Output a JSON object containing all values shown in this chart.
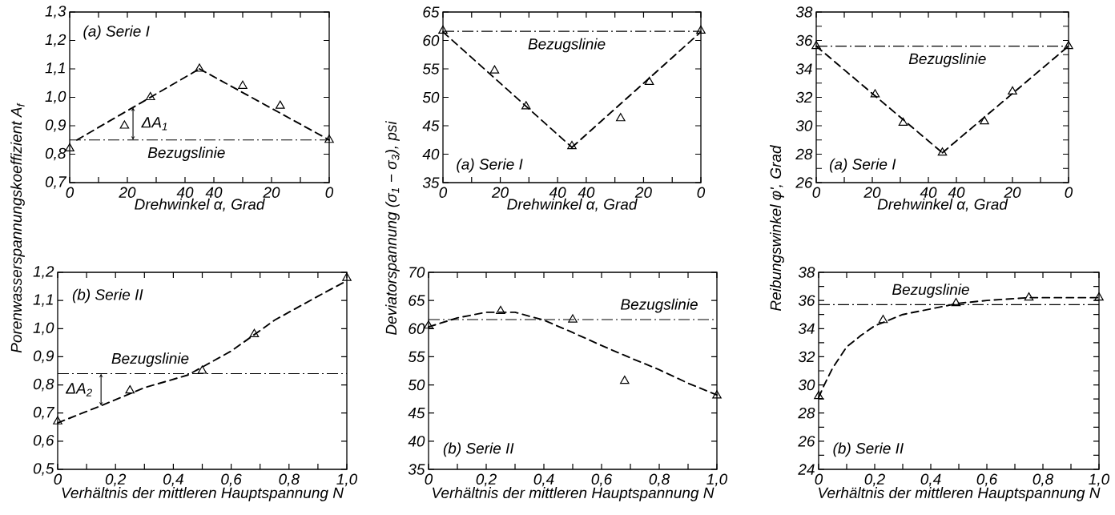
{
  "chart_data": [
    {
      "type": "scatter",
      "title": "(a) Serie I",
      "xlabel": "Drehwinkel α, Grad",
      "ylabel": "Porenwasserspannungskoeffizient A$_{f}$",
      "xlim": [
        0,
        90
      ],
      "ylim": [
        0.7,
        1.3
      ],
      "x2lim": [
        90,
        0
      ],
      "xticks": [
        0,
        {
          "value": 10,
          "label": null
        },
        20,
        {
          "value": 30,
          "label": null
        },
        40,
        {
          "value": 60,
          "label": null
        },
        {
          "value": 80,
          "label": null
        }
      ],
      "x2ticks": [
        40,
        20,
        0
      ],
      "yticks": [
        {
          "value": 0.7,
          "label": "0,7"
        },
        {
          "value": 0.8,
          "label": "0,8"
        },
        {
          "value": 0.9,
          "label": "0,9"
        },
        {
          "value": 1.0,
          "label": "1,0"
        },
        {
          "value": 1.1,
          "label": "1,1"
        },
        {
          "value": 1.2,
          "label": "1,2"
        },
        {
          "value": 1.3,
          "label": "1,3"
        }
      ],
      "series": [
        {
          "color": "#000000",
          "marker": "triangle",
          "x": [
            0,
            19,
            28,
            45
          ],
          "values": [
            0.82,
            0.9,
            1.0,
            1.1
          ]
        },
        {
          "color": "#000000",
          "marker": "triangle",
          "axis": "x2",
          "x": [
            30,
            17,
            0
          ],
          "values": [
            1.04,
            0.97,
            0.85
          ]
        },
        {
          "type": "line",
          "color": "#000000",
          "marker": "none",
          "line_style": "dashed",
          "x": [
            2.5,
            45
          ],
          "values": [
            0.85,
            1.1
          ]
        },
        {
          "type": "line",
          "color": "#000000",
          "marker": "none",
          "line_style": "dashed",
          "axis": "x2",
          "x": [
            45,
            0
          ],
          "values": [
            1.1,
            0.85
          ]
        }
      ],
      "ref_lines": [
        {
          "axis": "y",
          "value": 0.85,
          "label": "Bezugslinie",
          "color": "#000000",
          "line_style": "dashdot"
        }
      ],
      "annotations": [
        "ΔA$_{1}$"
      ]
    },
    {
      "type": "scatter",
      "title": "(a) Serie I",
      "xlabel": "Drehwinkel α, Grad",
      "ylabel": "Deviatorspannung (σ$_{1}$ − σ$_{3}$), psi",
      "xlim": [
        0,
        90
      ],
      "ylim": [
        35,
        65
      ],
      "x2lim": [
        90,
        0
      ],
      "xticks": [
        0,
        {
          "value": 10,
          "label": null
        },
        20,
        {
          "value": 30,
          "label": null
        },
        40,
        {
          "value": 60,
          "label": null
        },
        {
          "value": 80,
          "label": null
        }
      ],
      "x2ticks": [
        40,
        20,
        0
      ],
      "yticks": [
        35,
        40,
        45,
        50,
        55,
        60,
        65
      ],
      "series": [
        {
          "color": "#000000",
          "marker": "triangle",
          "x": [
            0,
            18,
            29,
            45
          ],
          "values": [
            61.7,
            54.7,
            48.4,
            41.4
          ]
        },
        {
          "color": "#000000",
          "marker": "triangle",
          "axis": "x2",
          "x": [
            28,
            18,
            0
          ],
          "values": [
            46.3,
            52.7,
            61.7
          ]
        },
        {
          "type": "line",
          "color": "#000000",
          "marker": "none",
          "line_style": "dashed",
          "x": [
            0,
            45
          ],
          "values": [
            61.5,
            41.2
          ]
        },
        {
          "type": "line",
          "color": "#000000",
          "marker": "none",
          "line_style": "dashed",
          "axis": "x2",
          "x": [
            45,
            0
          ],
          "values": [
            41.2,
            61.5
          ]
        }
      ],
      "ref_lines": [
        {
          "axis": "y",
          "value": 61.6,
          "label": "Bezugslinie",
          "color": "#000000",
          "line_style": "dashdot"
        }
      ]
    },
    {
      "type": "scatter",
      "title": "(a) Serie I",
      "xlabel": "Drehwinkel α, Grad",
      "ylabel": "Reibungswinkel φ', Grad",
      "xlim": [
        0,
        90
      ],
      "ylim": [
        26,
        38
      ],
      "x2lim": [
        90,
        0
      ],
      "xticks": [
        0,
        {
          "value": 10,
          "label": null
        },
        20,
        {
          "value": 30,
          "label": null
        },
        40,
        {
          "value": 60,
          "label": null
        },
        {
          "value": 80,
          "label": null
        }
      ],
      "x2ticks": [
        40,
        20,
        0
      ],
      "yticks": [
        26,
        {
          "value": 27,
          "label": null
        },
        28,
        {
          "value": 29,
          "label": null
        },
        30,
        {
          "value": 31,
          "label": null
        },
        32,
        {
          "value": 33,
          "label": null
        },
        34,
        {
          "value": 35,
          "label": null
        },
        36,
        {
          "value": 37,
          "label": null
        },
        38
      ],
      "series": [
        {
          "color": "#000000",
          "marker": "triangle",
          "x": [
            0,
            21,
            31,
            45
          ],
          "values": [
            35.6,
            32.2,
            30.2,
            28.1
          ]
        },
        {
          "color": "#000000",
          "marker": "triangle",
          "axis": "x2",
          "x": [
            30,
            20,
            0
          ],
          "values": [
            30.3,
            32.4,
            35.6
          ]
        },
        {
          "type": "line",
          "color": "#000000",
          "marker": "none",
          "line_style": "dashed",
          "x": [
            0,
            45
          ],
          "values": [
            35.6,
            28.1
          ]
        },
        {
          "type": "line",
          "color": "#000000",
          "marker": "none",
          "line_style": "dashed",
          "axis": "x2",
          "x": [
            45,
            0
          ],
          "values": [
            28.1,
            35.6
          ]
        }
      ],
      "ref_lines": [
        {
          "axis": "y",
          "value": 35.6,
          "label": "Bezugslinie",
          "color": "#000000",
          "line_style": "dashdot"
        }
      ]
    },
    {
      "type": "scatter",
      "title": "(b) Serie II",
      "xlabel": "Verhältnis der mittleren Hauptspannung N",
      "xlim": [
        0,
        1.0
      ],
      "ylim": [
        0.5,
        1.2
      ],
      "xticks": [
        0,
        {
          "value": 0.1,
          "label": null
        },
        {
          "value": 0.2,
          "label": "0,2"
        },
        {
          "value": 0.3,
          "label": null
        },
        {
          "value": 0.4,
          "label": "0,4"
        },
        {
          "value": 0.5,
          "label": null
        },
        {
          "value": 0.6,
          "label": "0,6"
        },
        {
          "value": 0.7,
          "label": null
        },
        {
          "value": 0.8,
          "label": "0,8"
        },
        {
          "value": 0.9,
          "label": null
        },
        {
          "value": 1.0,
          "label": "1,0"
        }
      ],
      "yticks": [
        {
          "value": 0.5,
          "label": "0,5"
        },
        {
          "value": 0.6,
          "label": "0,6"
        },
        {
          "value": 0.7,
          "label": "0,7"
        },
        {
          "value": 0.8,
          "label": "0,8"
        },
        {
          "value": 0.9,
          "label": "0,9"
        },
        {
          "value": 1.0,
          "label": "1,0"
        },
        {
          "value": 1.1,
          "label": "1,1"
        },
        {
          "value": 1.2,
          "label": "1,2"
        }
      ],
      "series": [
        {
          "color": "#000000",
          "marker": "triangle",
          "x": [
            0,
            0.25,
            0.5,
            0.68,
            1.0
          ],
          "values": [
            0.67,
            0.78,
            0.85,
            0.98,
            1.18
          ]
        },
        {
          "type": "line",
          "color": "#000000",
          "marker": "none",
          "line_style": "dashed",
          "x": [
            0,
            0.15,
            0.3,
            0.45,
            0.6,
            0.75,
            0.9,
            1.0
          ],
          "values": [
            0.665,
            0.726,
            0.79,
            0.835,
            0.92,
            1.03,
            1.115,
            1.17
          ]
        }
      ],
      "ref_lines": [
        {
          "axis": "y",
          "value": 0.84,
          "label": "Bezugslinie",
          "color": "#000000",
          "line_style": "dashdot"
        }
      ],
      "annotations": [
        "ΔA$_{2}$"
      ]
    },
    {
      "type": "scatter",
      "title": "(b) Serie II",
      "xlabel": "Verhältnis der mittleren Hauptspannung N",
      "xlim": [
        0,
        1.0
      ],
      "ylim": [
        35,
        70
      ],
      "xticks": [
        0,
        {
          "value": 0.1,
          "label": null
        },
        {
          "value": 0.2,
          "label": "0,2"
        },
        {
          "value": 0.3,
          "label": null
        },
        {
          "value": 0.4,
          "label": "0,4"
        },
        {
          "value": 0.5,
          "label": null
        },
        {
          "value": 0.6,
          "label": "0,6"
        },
        {
          "value": 0.7,
          "label": null
        },
        {
          "value": 0.8,
          "label": "0,8"
        },
        {
          "value": 0.9,
          "label": null
        },
        {
          "value": 1.0,
          "label": "1,0"
        }
      ],
      "yticks": [
        35,
        40,
        45,
        50,
        55,
        60,
        65,
        70
      ],
      "series": [
        {
          "color": "#000000",
          "marker": "triangle",
          "x": [
            0,
            0.25,
            0.5,
            0.68,
            1.0
          ],
          "values": [
            60.5,
            63.1,
            61.6,
            50.7,
            48.1
          ]
        },
        {
          "type": "line",
          "color": "#000000",
          "marker": "none",
          "line_style": "dashed",
          "x": [
            0,
            0.1,
            0.2,
            0.3,
            0.4,
            0.5,
            0.6,
            0.7,
            0.8,
            0.9,
            1.0
          ],
          "values": [
            60.3,
            61.9,
            62.9,
            62.9,
            61.5,
            59.3,
            57.0,
            54.8,
            52.7,
            50.3,
            48.2
          ]
        }
      ],
      "ref_lines": [
        {
          "axis": "y",
          "value": 61.6,
          "label": "Bezugslinie",
          "color": "#000000",
          "line_style": "dashdot"
        }
      ]
    },
    {
      "type": "scatter",
      "title": "(b) Serie II",
      "xlabel": "Verhältnis der mittleren Hauptspannung N",
      "xlim": [
        0,
        1.0
      ],
      "ylim": [
        24,
        38
      ],
      "xticks": [
        0,
        {
          "value": 0.1,
          "label": null
        },
        {
          "value": 0.2,
          "label": "0,2"
        },
        {
          "value": 0.3,
          "label": null
        },
        {
          "value": 0.4,
          "label": "0,4"
        },
        {
          "value": 0.5,
          "label": null
        },
        {
          "value": 0.6,
          "label": "0,6"
        },
        {
          "value": 0.7,
          "label": null
        },
        {
          "value": 0.8,
          "label": "0,8"
        },
        {
          "value": 0.9,
          "label": null
        },
        {
          "value": 1.0,
          "label": "1,0"
        }
      ],
      "yticks": [
        24,
        {
          "value": 25,
          "label": null
        },
        26,
        {
          "value": 27,
          "label": null
        },
        28,
        {
          "value": 29,
          "label": null
        },
        30,
        {
          "value": 31,
          "label": null
        },
        32,
        {
          "value": 33,
          "label": null
        },
        34,
        {
          "value": 35,
          "label": null
        },
        36,
        {
          "value": 37,
          "label": null
        },
        38
      ],
      "series": [
        {
          "color": "#000000",
          "marker": "triangle",
          "x": [
            0,
            0.23,
            0.49,
            0.75,
            1.0
          ],
          "values": [
            29.2,
            34.6,
            35.8,
            36.2,
            36.2
          ]
        },
        {
          "type": "line",
          "color": "#000000",
          "marker": "none",
          "line_style": "dashed",
          "x": [
            0,
            0.02,
            0.05,
            0.1,
            0.15,
            0.2,
            0.3,
            0.4,
            0.5,
            0.6,
            0.75,
            1.0
          ],
          "values": [
            29.1,
            30.0,
            31.2,
            32.7,
            33.5,
            34.2,
            35.0,
            35.4,
            35.8,
            36.0,
            36.2,
            36.2
          ]
        }
      ],
      "ref_lines": [
        {
          "axis": "y",
          "value": 35.7,
          "label": "Bezugslinie",
          "color": "#000000",
          "line_style": "dashdot"
        }
      ]
    }
  ]
}
